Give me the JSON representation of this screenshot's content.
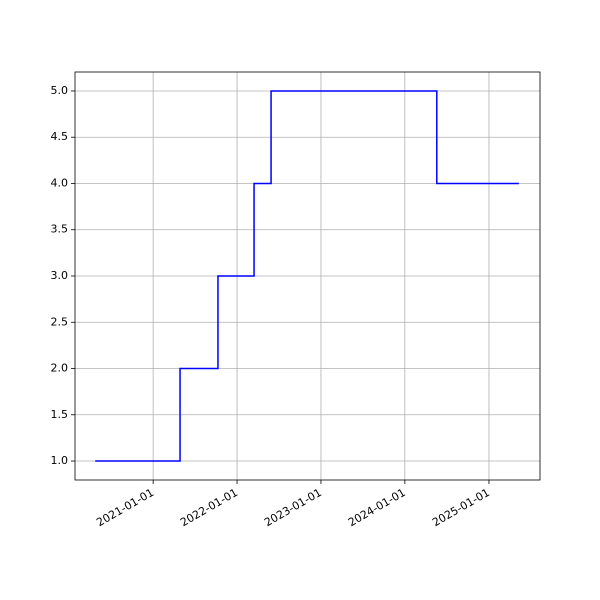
{
  "chart_data": {
    "type": "line",
    "step": "post",
    "x": [
      "2020-04-24",
      "2021-04-28",
      "2021-10-10",
      "2022-03-16",
      "2022-05-29",
      "2024-05-19",
      "2025-05-11"
    ],
    "series": [
      {
        "color": "#0000ff",
        "values": [
          1,
          2,
          3,
          4,
          5,
          4,
          4
        ]
      }
    ],
    "xlim": [
      "2020-01-27",
      "2025-08-11"
    ],
    "xticks": [
      "2021-01-01",
      "2022-01-01",
      "2023-01-01",
      "2024-01-01",
      "2025-01-01"
    ],
    "ylim": [
      0.795,
      5.205
    ],
    "yticks": [
      {
        "value": 1,
        "label": "1.0"
      },
      {
        "value": 1.5,
        "label": "1.5"
      },
      {
        "value": 2,
        "label": "2.0"
      },
      {
        "value": 2.5,
        "label": "2.5"
      },
      {
        "value": 3,
        "label": "3.0"
      },
      {
        "value": 3.5,
        "label": "3.5"
      },
      {
        "value": 4,
        "label": "4.0"
      },
      {
        "value": 4.5,
        "label": "4.5"
      },
      {
        "value": 5,
        "label": "5.0"
      }
    ],
    "grid": true
  }
}
